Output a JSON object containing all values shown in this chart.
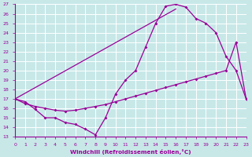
{
  "xlabel": "Windchill (Refroidissement éolien,°C)",
  "background_color": "#c8e8e8",
  "grid_color": "#ffffff",
  "line_color": "#990099",
  "xlim": [
    0,
    23
  ],
  "ylim": [
    13,
    27
  ],
  "xticks": [
    0,
    1,
    2,
    3,
    4,
    5,
    6,
    7,
    8,
    9,
    10,
    11,
    12,
    13,
    14,
    15,
    16,
    17,
    18,
    19,
    20,
    21,
    22,
    23
  ],
  "yticks": [
    13,
    14,
    15,
    16,
    17,
    18,
    19,
    20,
    21,
    22,
    23,
    24,
    25,
    26,
    27
  ],
  "line1_x": [
    0,
    1,
    2,
    3,
    4,
    5,
    6,
    7,
    8,
    9,
    10,
    11,
    12,
    13,
    14,
    15,
    16,
    17,
    18,
    19,
    20,
    21,
    22,
    23
  ],
  "line1_y": [
    17.0,
    16.7,
    15.9,
    15.0,
    15.0,
    14.5,
    14.3,
    13.8,
    13.2,
    15.0,
    17.5,
    19.0,
    20.0,
    22.5,
    25.0,
    26.8,
    27.0,
    26.7,
    25.5,
    25.0,
    24.0,
    21.5,
    20.0,
    17.0
  ],
  "line2_x": [
    0,
    1,
    2,
    3,
    4,
    5,
    6,
    7,
    8,
    9,
    10,
    11,
    12,
    13,
    14,
    15,
    16,
    17,
    18,
    19,
    20,
    21,
    22,
    23
  ],
  "line2_y": [
    17.0,
    16.5,
    16.2,
    16.0,
    15.8,
    15.7,
    15.8,
    16.0,
    16.2,
    16.4,
    16.7,
    17.0,
    17.3,
    17.6,
    17.9,
    18.2,
    18.5,
    18.8,
    19.1,
    19.4,
    19.7,
    20.0,
    23.0,
    17.0
  ],
  "line3_x": [
    0,
    16
  ],
  "line3_y": [
    17.0,
    26.5
  ],
  "marker": "D",
  "markersize": 2.0,
  "linewidth": 0.9
}
